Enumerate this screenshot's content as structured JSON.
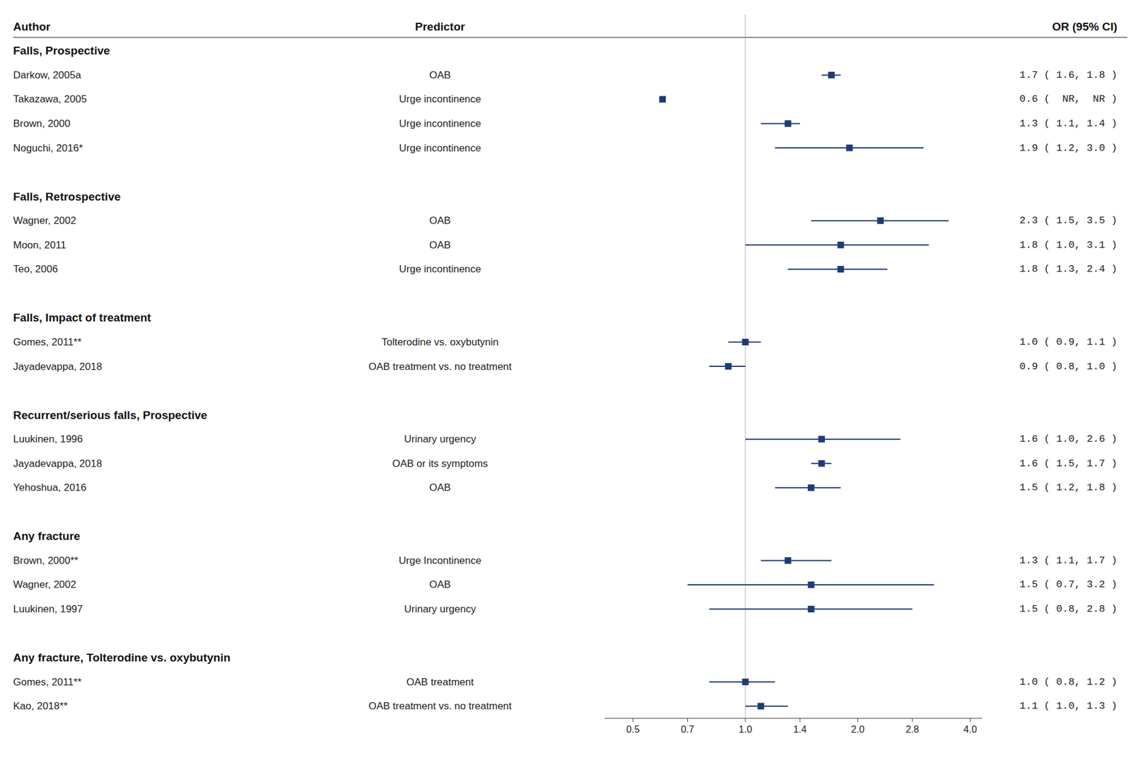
{
  "chart_data": {
    "type": "forest",
    "log": "x",
    "xlim": [
      0.42,
      4.3
    ],
    "xticks": [
      0.5,
      0.7,
      {
        "value": 1.0,
        "label": "1.0"
      },
      1.4,
      {
        "value": 2.0,
        "label": "2.0"
      },
      2.8,
      {
        "value": 4.0,
        "label": "4.0"
      }
    ],
    "reference_line": 1.0,
    "columns": [
      "Author",
      "Predictor",
      "OR (95% CI)"
    ],
    "sections": [
      {
        "title": "Falls, Prospective",
        "studies": [
          {
            "author": "Darkow, 2005a",
            "predictor": "OAB",
            "value": 1.7,
            "ci_lo": 1.6,
            "ci_hi": 1.8,
            "label": "1.7 ( 1.6, 1.8 )"
          },
          {
            "author": "Takazawa, 2005",
            "predictor": "Urge incontinence",
            "value": 0.6,
            "ci_lo": null,
            "ci_hi": null,
            "label": "0.6 (  NR,  NR )"
          },
          {
            "author": "Brown, 2000",
            "predictor": "Urge incontinence",
            "value": 1.3,
            "ci_lo": 1.1,
            "ci_hi": 1.4,
            "label": "1.3 ( 1.1, 1.4 )"
          },
          {
            "author": "Noguchi, 2016*",
            "predictor": "Urge incontinence",
            "value": 1.9,
            "ci_lo": 1.2,
            "ci_hi": 3.0,
            "label": "1.9 ( 1.2, 3.0 )"
          }
        ]
      },
      {
        "title": "Falls, Retrospective",
        "studies": [
          {
            "author": "Wagner, 2002",
            "predictor": "OAB",
            "value": 2.3,
            "ci_lo": 1.5,
            "ci_hi": 3.5,
            "label": "2.3 ( 1.5, 3.5 )"
          },
          {
            "author": "Moon, 2011",
            "predictor": "OAB",
            "value": 1.8,
            "ci_lo": 1.0,
            "ci_hi": 3.1,
            "label": "1.8 ( 1.0, 3.1 )"
          },
          {
            "author": "Teo, 2006",
            "predictor": "Urge incontinence",
            "value": 1.8,
            "ci_lo": 1.3,
            "ci_hi": 2.4,
            "label": "1.8 ( 1.3, 2.4 )"
          }
        ]
      },
      {
        "title": "Falls, Impact of treatment",
        "studies": [
          {
            "author": "Gomes, 2011**",
            "predictor": "Tolterodine vs. oxybutynin",
            "value": 1.0,
            "ci_lo": 0.9,
            "ci_hi": 1.1,
            "label": "1.0 ( 0.9, 1.1 )"
          },
          {
            "author": "Jayadevappa, 2018",
            "predictor": "OAB treatment vs. no treatment",
            "value": 0.9,
            "ci_lo": 0.8,
            "ci_hi": 1.0,
            "label": "0.9 ( 0.8, 1.0 )"
          }
        ]
      },
      {
        "title": "Recurrent/serious falls, Prospective",
        "studies": [
          {
            "author": "Luukinen, 1996",
            "predictor": "Urinary urgency",
            "value": 1.6,
            "ci_lo": 1.0,
            "ci_hi": 2.6,
            "label": "1.6 ( 1.0, 2.6 )"
          },
          {
            "author": "Jayadevappa, 2018",
            "predictor": "OAB or its symptoms",
            "value": 1.6,
            "ci_lo": 1.5,
            "ci_hi": 1.7,
            "label": "1.6 ( 1.5, 1.7 )"
          },
          {
            "author": "Yehoshua, 2016",
            "predictor": "OAB",
            "value": 1.5,
            "ci_lo": 1.2,
            "ci_hi": 1.8,
            "label": "1.5 ( 1.2, 1.8 )"
          }
        ]
      },
      {
        "title": "Any fracture",
        "studies": [
          {
            "author": "Brown, 2000**",
            "predictor": "Urge Incontinence",
            "value": 1.3,
            "ci_lo": 1.1,
            "ci_hi": 1.7,
            "label": "1.3 ( 1.1, 1.7 )"
          },
          {
            "author": "Wagner, 2002",
            "predictor": "OAB",
            "value": 1.5,
            "ci_lo": 0.7,
            "ci_hi": 3.2,
            "label": "1.5 ( 0.7, 3.2 )"
          },
          {
            "author": "Luukinen, 1997",
            "predictor": "Urinary urgency",
            "value": 1.5,
            "ci_lo": 0.8,
            "ci_hi": 2.8,
            "label": "1.5 ( 0.8, 2.8 )"
          }
        ]
      },
      {
        "title": "Any fracture, Tolterodine vs. oxybutynin",
        "studies": [
          {
            "author": "Gomes, 2011**",
            "predictor": "OAB treatment",
            "value": 1.0,
            "ci_lo": 0.8,
            "ci_hi": 1.2,
            "label": "1.0 ( 0.8, 1.2 )"
          },
          {
            "author": "Kao, 2018**",
            "predictor": "OAB treatment vs. no treatment",
            "value": 1.1,
            "ci_lo": 1.0,
            "ci_hi": 1.3,
            "label": "1.1 ( 1.0, 1.3 )"
          }
        ]
      }
    ]
  }
}
